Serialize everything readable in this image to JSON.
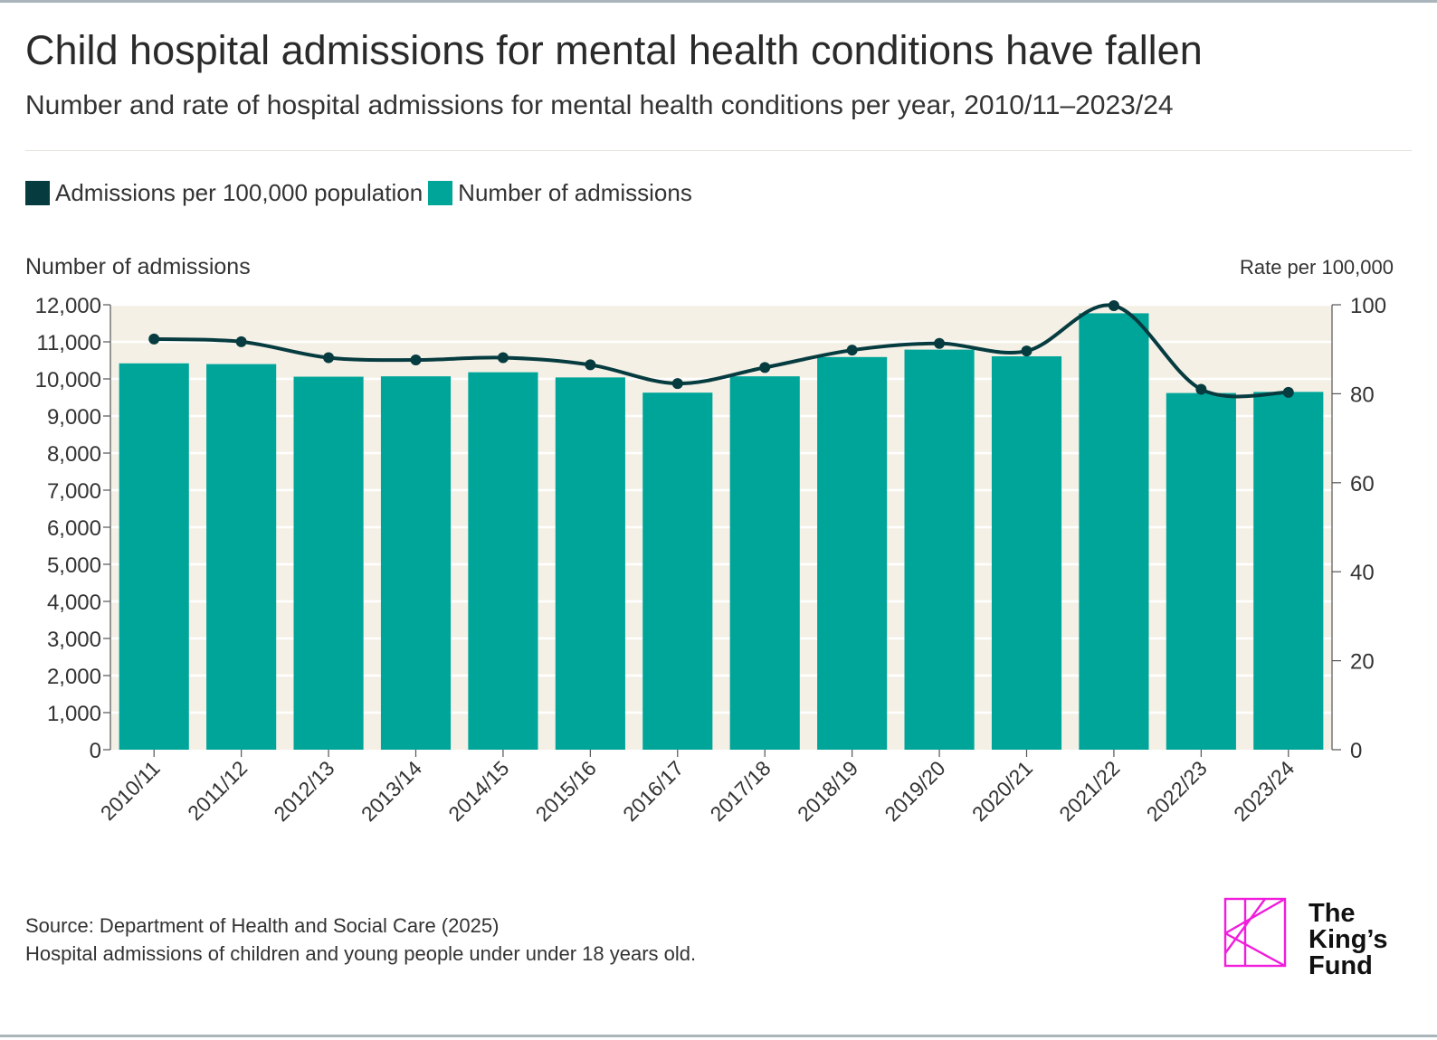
{
  "title": "Child hospital admissions for mental health conditions have fallen",
  "subtitle": "Number and rate of hospital admissions for mental health conditions per year, 2010/11–2023/24",
  "legend": [
    {
      "label": "Admissions per 100,000 population",
      "color": "#063b3f"
    },
    {
      "label": "Number of admissions",
      "color": "#00a59a"
    }
  ],
  "footer": {
    "source": "Source: Department of Health and Social Care (2025)",
    "note": "Hospital admissions of children and young people under under 18 years old."
  },
  "logo": {
    "line1": "The",
    "line2": "King’s",
    "line3": "Fund",
    "color": "#f01ddc"
  },
  "colors": {
    "plot_background": "#f4f0e6",
    "bar": "#00a59a",
    "line": "#063b3f"
  },
  "chart_data": {
    "type": "bar",
    "categories": [
      "2010/11",
      "2011/12",
      "2012/13",
      "2013/14",
      "2014/15",
      "2015/16",
      "2016/17",
      "2017/18",
      "2018/19",
      "2019/20",
      "2020/21",
      "2021/22",
      "2022/23",
      "2023/24"
    ],
    "ylabel": "Number of admissions",
    "y2label": "Rate per 100,000",
    "ylim": [
      0,
      12000
    ],
    "y2lim": [
      0,
      100
    ],
    "yticks": [
      "0",
      "1,000",
      "2,000",
      "3,000",
      "4,000",
      "5,000",
      "6,000",
      "7,000",
      "8,000",
      "9,000",
      "10,000",
      "11,000",
      "12,000"
    ],
    "y2ticks": [
      "0",
      "20",
      "40",
      "60",
      "80",
      "100"
    ],
    "series": [
      {
        "name": "Number of admissions",
        "type": "bar",
        "values": [
          10420,
          10400,
          10060,
          10070,
          10180,
          10040,
          9630,
          10070,
          10590,
          10790,
          10610,
          11770,
          9620,
          9650
        ]
      },
      {
        "name": "Admissions per 100,000 population",
        "type": "line",
        "axis": "right",
        "values": [
          92.3,
          91.7,
          88.1,
          87.6,
          88.1,
          86.5,
          82.3,
          85.9,
          89.8,
          91.3,
          89.6,
          99.8,
          81.0,
          80.3
        ]
      }
    ],
    "grid": true,
    "legend_position": "top-left"
  }
}
